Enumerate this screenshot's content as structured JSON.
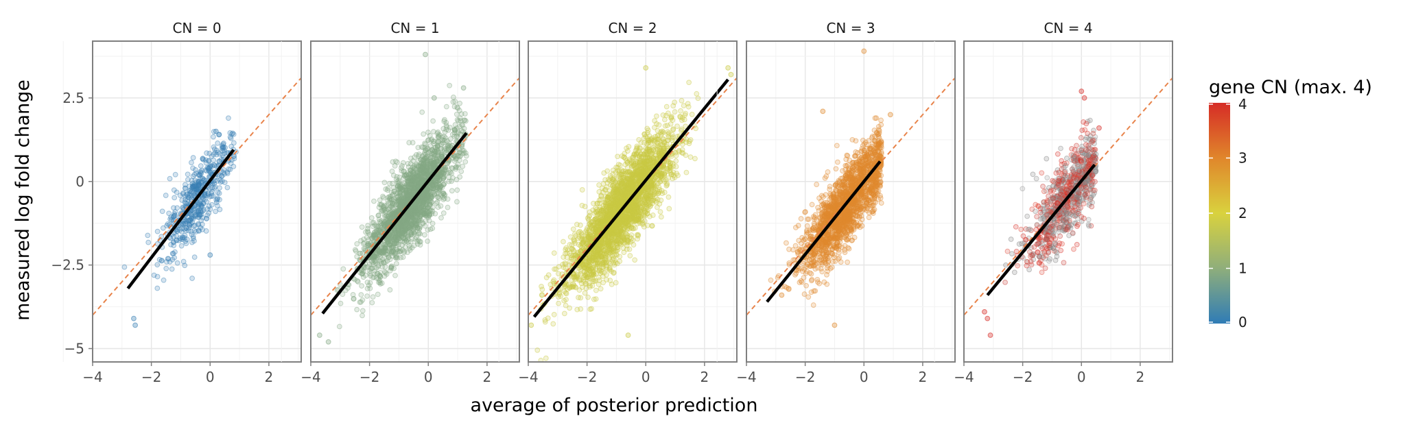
{
  "chart_data": {
    "type": "scatter",
    "facet_variable": "CN",
    "xlabel": "average of posterior prediction",
    "ylabel": "measured log fold change",
    "xlim": [
      -4,
      3.1
    ],
    "ylim": [
      -5.4,
      4.2
    ],
    "x_ticks": [
      -4,
      -2,
      0,
      2
    ],
    "x_tick_labels": [
      "−4",
      "−2",
      "0",
      "2"
    ],
    "y_ticks": [
      -5,
      -2.5,
      0,
      2.5
    ],
    "y_tick_labels": [
      "−5",
      "−2.5",
      "0",
      "2.5"
    ],
    "grid": true,
    "reference_line": {
      "style": "dashed",
      "slope": 1,
      "intercept": 0,
      "color": "#E8834A"
    },
    "regression_line_color": "#000000",
    "legend": {
      "title": "gene CN (max. 4)",
      "placement": "right",
      "type": "colorbar",
      "range": [
        0,
        4
      ],
      "ticks": [
        0,
        1,
        2,
        3,
        4
      ],
      "tick_labels": [
        "0",
        "1",
        "2",
        "3",
        "4"
      ],
      "colors": [
        "#2F7CB6",
        "#8FAE7B",
        "#D9D23E",
        "#E0862B",
        "#D62C26"
      ]
    },
    "facets": [
      {
        "label": "CN = 0",
        "point_color": "#3A80B4",
        "cloud": {
          "x_mean": -0.4,
          "x_sd": 0.6,
          "x_max": 0.9,
          "y_sd": 0.55,
          "n": 500
        },
        "fit": {
          "x": [
            -2.8,
            0.8
          ],
          "y": [
            -3.2,
            0.95
          ]
        },
        "outliers": [
          [
            -2.6,
            -4.1
          ],
          [
            -2.55,
            -4.3
          ],
          [
            0.2,
            1.5
          ],
          [
            0.3,
            1.4
          ],
          [
            0.0,
            -2.2
          ]
        ]
      },
      {
        "label": "CN = 1",
        "point_color": "#85A985",
        "cloud": {
          "x_mean": -0.6,
          "x_sd": 0.8,
          "x_max": 1.3,
          "y_sd": 0.6,
          "n": 2200
        },
        "fit": {
          "x": [
            -3.6,
            1.3
          ],
          "y": [
            -3.95,
            1.45
          ]
        },
        "outliers": [
          [
            -0.1,
            3.8
          ],
          [
            1.2,
            2.8
          ],
          [
            -3.4,
            -4.8
          ],
          [
            -3.7,
            -4.6
          ],
          [
            0.2,
            2.5
          ]
        ]
      },
      {
        "label": "CN = 2",
        "point_color": "#C9C943",
        "cloud": {
          "x_mean": -0.8,
          "x_sd": 0.9,
          "x_max": 2.9,
          "y_sd": 0.6,
          "n": 2800
        },
        "fit": {
          "x": [
            -3.8,
            2.8
          ],
          "y": [
            -4.05,
            3.05
          ]
        },
        "outliers": [
          [
            2.8,
            3.4
          ],
          [
            2.9,
            3.2
          ],
          [
            0.0,
            3.4
          ],
          [
            -3.9,
            -4.3
          ],
          [
            -3.5,
            -3.7
          ],
          [
            -0.6,
            -4.6
          ]
        ]
      },
      {
        "label": "CN = 3",
        "point_color": "#E08A2E",
        "cloud": {
          "x_mean": -0.6,
          "x_sd": 0.75,
          "x_max": 0.6,
          "y_sd": 0.55,
          "n": 1800
        },
        "fit": {
          "x": [
            -3.3,
            0.55
          ],
          "y": [
            -3.6,
            0.6
          ]
        },
        "outliers": [
          [
            0.0,
            3.9
          ],
          [
            -1.0,
            -4.3
          ],
          [
            -2.8,
            -3.4
          ],
          [
            0.9,
            2.0
          ],
          [
            -1.4,
            2.1
          ]
        ]
      },
      {
        "label": "CN = 4",
        "point_color": "mixed",
        "cloud": {
          "x_mean": -0.5,
          "x_sd": 0.7,
          "x_max": 0.5,
          "y_sd": 0.6,
          "n": 900
        },
        "fit": {
          "x": [
            -3.2,
            0.45
          ],
          "y": [
            -3.4,
            0.5
          ]
        },
        "outliers": [
          [
            -3.3,
            -3.9
          ],
          [
            -3.2,
            -4.1
          ],
          [
            -3.1,
            -4.6
          ],
          [
            0.0,
            2.7
          ],
          [
            0.1,
            2.5
          ],
          [
            0.6,
            1.6
          ]
        ]
      }
    ]
  }
}
